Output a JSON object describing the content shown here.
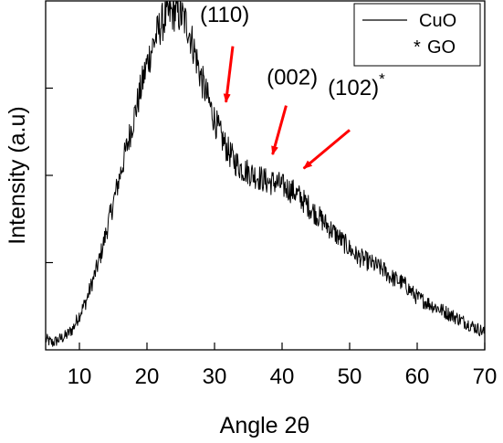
{
  "chart_data": {
    "type": "line",
    "title": "",
    "xlabel": "Angle 2θ",
    "ylabel": "Intensity (a.u)",
    "xlim": [
      5,
      70
    ],
    "ylim": [
      0,
      100
    ],
    "x_ticks": [
      10,
      20,
      30,
      40,
      50,
      60,
      70
    ],
    "y_tick_labels_shown": false,
    "grid": false,
    "legend": {
      "placement": "top-right",
      "entries": [
        {
          "kind": "line",
          "text": "CuO"
        },
        {
          "kind": "marker",
          "marker": "*",
          "text": "GO"
        }
      ]
    },
    "series": [
      {
        "name": "CuO",
        "color": "#000000",
        "x": [
          5,
          6,
          7,
          8,
          9,
          10,
          11,
          12,
          13,
          14,
          15,
          16,
          17,
          18,
          19,
          20,
          21,
          22,
          23,
          24,
          25,
          26,
          27,
          28,
          29,
          30,
          31,
          32,
          33,
          34,
          35,
          36,
          37,
          38,
          39,
          40,
          41,
          42,
          43,
          44,
          45,
          46,
          47,
          48,
          49,
          50,
          51,
          52,
          53,
          54,
          55,
          56,
          57,
          58,
          59,
          60,
          61,
          62,
          63,
          64,
          65,
          66,
          67,
          68,
          69,
          70
        ],
        "y": [
          3,
          2,
          3,
          4,
          6,
          10,
          14,
          20,
          26,
          34,
          42,
          50,
          58,
          66,
          74,
          82,
          88,
          93,
          96,
          97,
          96,
          93,
          86,
          78,
          72,
          66,
          61,
          57,
          54,
          52,
          51,
          50,
          49,
          48,
          48,
          47,
          46,
          45,
          43,
          41,
          39,
          37,
          35,
          33,
          31,
          29,
          27,
          26,
          25,
          24,
          23,
          21,
          20,
          19,
          17,
          15,
          14,
          13,
          12,
          11,
          10,
          9,
          8,
          7,
          6,
          5
        ]
      }
    ],
    "annotations": [
      {
        "text": "(002)",
        "superscript": "*",
        "x": 24.5,
        "y": 109
      },
      {
        "text": "(110)",
        "x": 31.5,
        "y": 94
      },
      {
        "text": "(002)",
        "x": 41.5,
        "y": 76
      },
      {
        "text": "(102)",
        "superscript": "*",
        "x": 51,
        "y": 73
      }
    ],
    "arrows": [
      {
        "color": "#ff0000",
        "from": [
          32.7,
          87
        ],
        "to": [
          31.7,
          71
        ]
      },
      {
        "color": "#ff0000",
        "from": [
          40.6,
          70
        ],
        "to": [
          38.6,
          56
        ]
      },
      {
        "color": "#ff0000",
        "from": [
          50,
          63
        ],
        "to": [
          43.2,
          52
        ]
      }
    ]
  }
}
